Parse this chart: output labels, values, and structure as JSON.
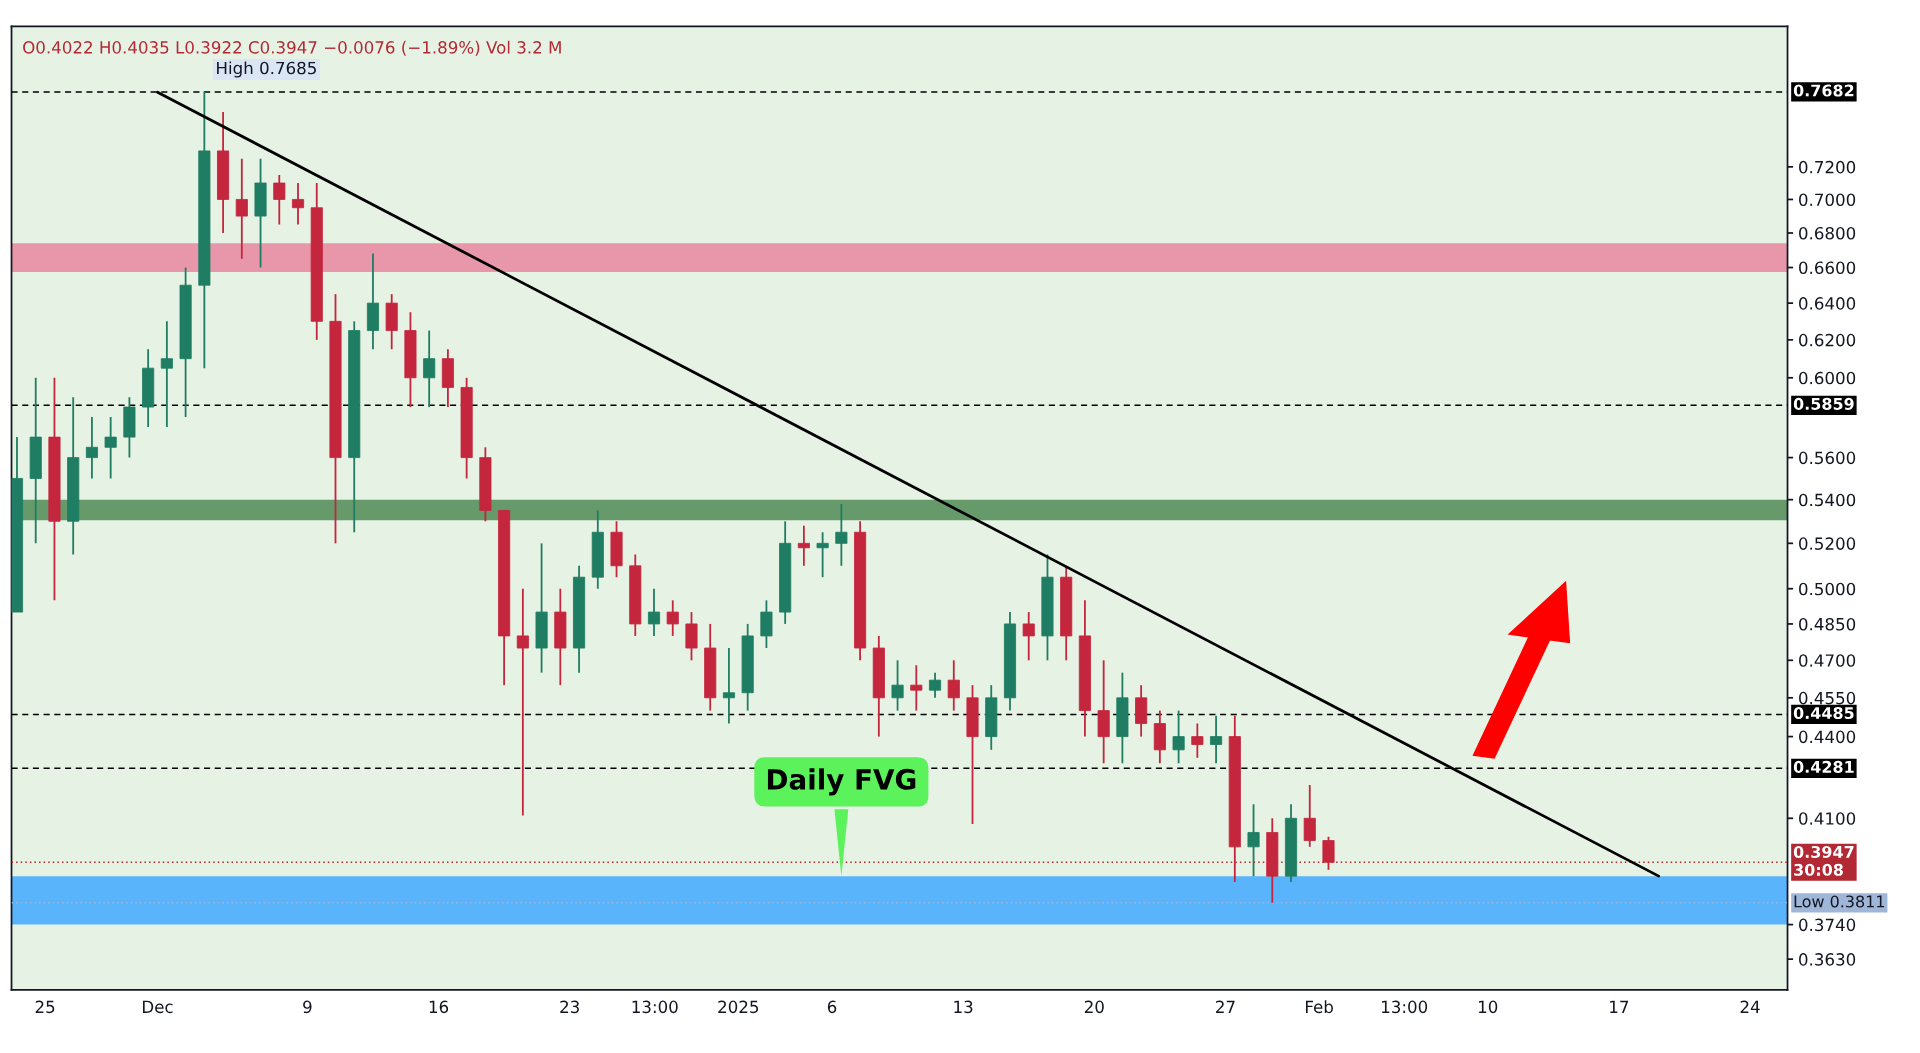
{
  "chart_data": {
    "type": "candlestick",
    "x": [
      "2024-11-23T12:00",
      "2024-11-24T12:00",
      "2024-11-25T12:00",
      "2024-11-26T12:00",
      "2024-11-27T12:00",
      "2024-11-28T12:00",
      "2024-11-29T12:00",
      "2024-11-30T12:00",
      "2024-12-01T12:00",
      "2024-12-02T12:00",
      "2024-12-03T12:00",
      "2024-12-04T12:00",
      "2024-12-05T12:00",
      "2024-12-06T12:00",
      "2024-12-07T12:00",
      "2024-12-08T12:00",
      "2024-12-09T12:00",
      "2024-12-10T12:00",
      "2024-12-11T12:00",
      "2024-12-12T12:00",
      "2024-12-13T12:00",
      "2024-12-14T12:00",
      "2024-12-15T12:00",
      "2024-12-16T12:00",
      "2024-12-17T12:00",
      "2024-12-18T12:00",
      "2024-12-19T12:00",
      "2024-12-20T12:00",
      "2024-12-21T12:00",
      "2024-12-22T12:00",
      "2024-12-23T12:00",
      "2024-12-24T12:00",
      "2024-12-25T12:00",
      "2024-12-26T12:00",
      "2024-12-27T12:00",
      "2024-12-28T12:00",
      "2024-12-29T12:00",
      "2024-12-30T12:00",
      "2024-12-31T12:00",
      "2025-01-01T12:00",
      "2025-01-02T12:00",
      "2025-01-03T12:00",
      "2025-01-04T12:00",
      "2025-01-05T12:00",
      "2025-01-06T12:00",
      "2025-01-07T12:00",
      "2025-01-08T12:00",
      "2025-01-09T12:00",
      "2025-01-10T12:00",
      "2025-01-11T12:00",
      "2025-01-12T12:00",
      "2025-01-13T12:00",
      "2025-01-14T12:00",
      "2025-01-15T12:00",
      "2025-01-16T12:00",
      "2025-01-17T12:00",
      "2025-01-18T12:00",
      "2025-01-19T12:00",
      "2025-01-20T12:00",
      "2025-01-21T12:00",
      "2025-01-22T12:00",
      "2025-01-23T12:00",
      "2025-01-24T12:00",
      "2025-01-25T12:00",
      "2025-01-26T12:00",
      "2025-01-27T12:00",
      "2025-01-28T12:00",
      "2025-01-29T12:00",
      "2025-01-30T12:00",
      "2025-01-31T12:00",
      "2025-02-01T12:00"
    ],
    "ohlc": [
      [
        0.49,
        0.57,
        0.49,
        0.55
      ],
      [
        0.55,
        0.6,
        0.52,
        0.57
      ],
      [
        0.57,
        0.6,
        0.495,
        0.53
      ],
      [
        0.53,
        0.59,
        0.515,
        0.56
      ],
      [
        0.56,
        0.58,
        0.55,
        0.565
      ],
      [
        0.565,
        0.58,
        0.55,
        0.57
      ],
      [
        0.57,
        0.59,
        0.56,
        0.585
      ],
      [
        0.585,
        0.615,
        0.575,
        0.605
      ],
      [
        0.605,
        0.63,
        0.575,
        0.61
      ],
      [
        0.61,
        0.66,
        0.58,
        0.65
      ],
      [
        0.65,
        0.7685,
        0.605,
        0.73
      ],
      [
        0.73,
        0.755,
        0.68,
        0.7
      ],
      [
        0.7,
        0.725,
        0.665,
        0.69
      ],
      [
        0.69,
        0.725,
        0.66,
        0.71
      ],
      [
        0.71,
        0.715,
        0.685,
        0.7
      ],
      [
        0.7,
        0.71,
        0.685,
        0.695
      ],
      [
        0.695,
        0.71,
        0.62,
        0.63
      ],
      [
        0.63,
        0.645,
        0.52,
        0.56
      ],
      [
        0.56,
        0.63,
        0.525,
        0.625
      ],
      [
        0.625,
        0.668,
        0.615,
        0.64
      ],
      [
        0.64,
        0.645,
        0.615,
        0.625
      ],
      [
        0.625,
        0.635,
        0.585,
        0.6
      ],
      [
        0.6,
        0.625,
        0.585,
        0.61
      ],
      [
        0.61,
        0.615,
        0.585,
        0.595
      ],
      [
        0.595,
        0.6,
        0.55,
        0.56
      ],
      [
        0.56,
        0.565,
        0.53,
        0.535
      ],
      [
        0.535,
        0.535,
        0.46,
        0.48
      ],
      [
        0.48,
        0.5,
        0.411,
        0.475
      ],
      [
        0.475,
        0.52,
        0.465,
        0.49
      ],
      [
        0.49,
        0.5,
        0.46,
        0.475
      ],
      [
        0.475,
        0.51,
        0.465,
        0.505
      ],
      [
        0.505,
        0.535,
        0.5,
        0.525
      ],
      [
        0.525,
        0.53,
        0.505,
        0.51
      ],
      [
        0.51,
        0.515,
        0.48,
        0.485
      ],
      [
        0.485,
        0.5,
        0.48,
        0.49
      ],
      [
        0.49,
        0.495,
        0.48,
        0.485
      ],
      [
        0.485,
        0.49,
        0.47,
        0.475
      ],
      [
        0.475,
        0.485,
        0.45,
        0.455
      ],
      [
        0.455,
        0.475,
        0.445,
        0.457
      ],
      [
        0.457,
        0.485,
        0.45,
        0.48
      ],
      [
        0.48,
        0.495,
        0.475,
        0.49
      ],
      [
        0.49,
        0.53,
        0.485,
        0.52
      ],
      [
        0.52,
        0.528,
        0.51,
        0.518
      ],
      [
        0.518,
        0.525,
        0.505,
        0.52
      ],
      [
        0.52,
        0.538,
        0.51,
        0.525
      ],
      [
        0.525,
        0.53,
        0.47,
        0.475
      ],
      [
        0.475,
        0.48,
        0.44,
        0.455
      ],
      [
        0.455,
        0.47,
        0.45,
        0.46
      ],
      [
        0.46,
        0.468,
        0.45,
        0.458
      ],
      [
        0.458,
        0.465,
        0.455,
        0.462
      ],
      [
        0.462,
        0.47,
        0.45,
        0.455
      ],
      [
        0.455,
        0.46,
        0.408,
        0.44
      ],
      [
        0.44,
        0.46,
        0.435,
        0.455
      ],
      [
        0.455,
        0.49,
        0.45,
        0.485
      ],
      [
        0.485,
        0.49,
        0.47,
        0.48
      ],
      [
        0.48,
        0.515,
        0.47,
        0.505
      ],
      [
        0.505,
        0.51,
        0.47,
        0.48
      ],
      [
        0.48,
        0.495,
        0.44,
        0.45
      ],
      [
        0.45,
        0.47,
        0.43,
        0.44
      ],
      [
        0.44,
        0.465,
        0.43,
        0.455
      ],
      [
        0.455,
        0.46,
        0.44,
        0.445
      ],
      [
        0.445,
        0.45,
        0.43,
        0.435
      ],
      [
        0.435,
        0.45,
        0.43,
        0.44
      ],
      [
        0.44,
        0.445,
        0.432,
        0.437
      ],
      [
        0.437,
        0.448,
        0.43,
        0.44
      ],
      [
        0.44,
        0.448,
        0.388,
        0.4
      ],
      [
        0.4,
        0.415,
        0.39,
        0.405
      ],
      [
        0.405,
        0.41,
        0.3811,
        0.39
      ],
      [
        0.39,
        0.415,
        0.388,
        0.41
      ],
      [
        0.41,
        0.422,
        0.4,
        0.4022
      ],
      [
        0.4022,
        0.4035,
        0.3922,
        0.3947
      ]
    ],
    "colors": [
      "#1f7d63",
      "#1f7d63",
      "#c4263d",
      "#1f7d63",
      "#1f7d63",
      "#1f7d63",
      "#1f7d63",
      "#1f7d63",
      "#1f7d63",
      "#1f7d63",
      "#1f7d63",
      "#c4263d",
      "#c4263d",
      "#1f7d63",
      "#c4263d",
      "#c4263d",
      "#c4263d",
      "#c4263d",
      "#1f7d63",
      "#1f7d63",
      "#c4263d",
      "#c4263d",
      "#1f7d63",
      "#c4263d",
      "#c4263d",
      "#c4263d",
      "#c4263d",
      "#c4263d",
      "#1f7d63",
      "#c4263d",
      "#1f7d63",
      "#1f7d63",
      "#c4263d",
      "#c4263d",
      "#1f7d63",
      "#c4263d",
      "#c4263d",
      "#c4263d",
      "#1f7d63",
      "#1f7d63",
      "#1f7d63",
      "#1f7d63",
      "#c4263d",
      "#1f7d63",
      "#1f7d63",
      "#c4263d",
      "#c4263d",
      "#1f7d63",
      "#c4263d",
      "#1f7d63",
      "#c4263d",
      "#c4263d",
      "#1f7d63",
      "#1f7d63",
      "#c4263d",
      "#1f7d63",
      "#c4263d",
      "#c4263d",
      "#c4263d",
      "#1f7d63",
      "#c4263d",
      "#c4263d",
      "#1f7d63",
      "#c4263d",
      "#1f7d63",
      "#c4263d",
      "#1f7d63",
      "#c4263d",
      "#1f7d63",
      "#c4263d",
      "#c4263d"
    ],
    "series": [
      {
        "type": "line",
        "color": "#000000",
        "x": [
          "2024-12-01T00:00",
          "2025-02-19T03:00"
        ],
        "values": [
          0.768,
          0.39
        ]
      }
    ],
    "log": true,
    "xlim": [
      "2024-11-23T05:00",
      "2025-02-26T00:00"
    ],
    "ylim": [
      0.3535,
      0.813
    ],
    "xticks": [
      {
        "value": "2024-11-25",
        "label": "25"
      },
      {
        "value": "2024-12-01",
        "label": "Dec"
      },
      {
        "value": "2024-12-09",
        "label": "9"
      },
      {
        "value": "2024-12-16",
        "label": "16"
      },
      {
        "value": "2024-12-23",
        "label": "23"
      },
      {
        "value": "2024-12-27T13:00",
        "label": "13:00"
      },
      {
        "value": "2025-01-01",
        "label": "2025"
      },
      {
        "value": "2025-01-06",
        "label": "6"
      },
      {
        "value": "2025-01-13",
        "label": "13"
      },
      {
        "value": "2025-01-20",
        "label": "20"
      },
      {
        "value": "2025-01-27",
        "label": "27"
      },
      {
        "value": "2025-02-01",
        "label": "Feb"
      },
      {
        "value": "2025-02-05T13:00",
        "label": "13:00"
      },
      {
        "value": "2025-02-10",
        "label": "10"
      },
      {
        "value": "2025-02-17",
        "label": "17"
      },
      {
        "value": "2025-02-24",
        "label": "24"
      }
    ],
    "yticks": [
      {
        "value": 0.72,
        "label": "0.7200"
      },
      {
        "value": 0.7,
        "label": "0.7000"
      },
      {
        "value": 0.68,
        "label": "0.6800"
      },
      {
        "value": 0.66,
        "label": "0.6600"
      },
      {
        "value": 0.64,
        "label": "0.6400"
      },
      {
        "value": 0.62,
        "label": "0.6200"
      },
      {
        "value": 0.6,
        "label": "0.6000"
      },
      {
        "value": 0.56,
        "label": "0.5600"
      },
      {
        "value": 0.54,
        "label": "0.5400"
      },
      {
        "value": 0.52,
        "label": "0.5200"
      },
      {
        "value": 0.5,
        "label": "0.5000"
      },
      {
        "value": 0.485,
        "label": "0.4850"
      },
      {
        "value": 0.47,
        "label": "0.4700"
      },
      {
        "value": 0.455,
        "label": "0.4550"
      },
      {
        "value": 0.44,
        "label": "0.4400"
      },
      {
        "value": 0.41,
        "label": "0.4100"
      },
      {
        "value": 0.374,
        "label": "0.3740"
      },
      {
        "value": 0.363,
        "label": "0.3630"
      }
    ],
    "grid": false,
    "bands": [
      {
        "axis": "y",
        "from": 0.6575,
        "to": 0.674,
        "color": "#e897aa"
      },
      {
        "axis": "y",
        "from": 0.5305,
        "to": 0.54,
        "color": "#669a6a"
      },
      {
        "axis": "y",
        "from": 0.374,
        "to": 0.39,
        "color": "#5ab4fb"
      }
    ],
    "ref_lines": [
      {
        "axis": "y",
        "value": 0.7682,
        "label": "0.7682",
        "color": "#000000",
        "line_style": "dashed"
      },
      {
        "axis": "y",
        "value": 0.5859,
        "label": "0.5859",
        "color": "#000000",
        "line_style": "dashed"
      },
      {
        "axis": "y",
        "value": 0.4485,
        "label": "0.4485",
        "color": "#000000",
        "line_style": "dashed"
      },
      {
        "axis": "y",
        "value": 0.4281,
        "label": "0.4281",
        "color": "#000000",
        "line_style": "dashed"
      },
      {
        "axis": "y",
        "value": 0.3947,
        "label": "0.3947\n30:08",
        "color": "#b22833",
        "line_style": "dotted"
      },
      {
        "axis": "y",
        "value": 0.3811,
        "label": "Low 0.3811",
        "color": "#9fb6d8",
        "line_style": "dotted"
      }
    ],
    "annotations": [
      "O0.4022 H0.4035 L0.3922 C0.3947 −0.0076 (−1.89%) Vol 3.2 M",
      {
        "text": "Daily FVG",
        "x": "2025-01-06T12:00",
        "y": 0.389
      },
      {
        "text": "High 0.7685",
        "x": "2024-12-03T12:00",
        "y": 0.7685
      }
    ]
  }
}
